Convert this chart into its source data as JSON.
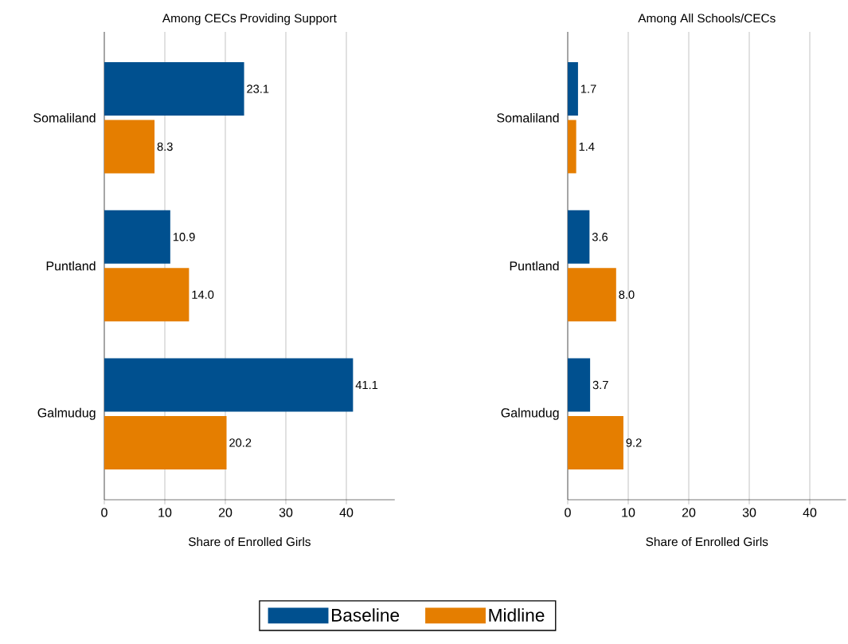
{
  "chart_data": [
    {
      "type": "bar",
      "orientation": "horizontal",
      "title": "Among CECs Providing Support",
      "xlabel": "Share of Enrolled Girls",
      "categories": [
        "Somaliland",
        "Puntland",
        "Galmudug"
      ],
      "series": [
        {
          "name": "Baseline",
          "color": "#00508f",
          "values": [
            23.1,
            10.9,
            41.1
          ],
          "value_labels": [
            "23.1",
            "10.9",
            "41.1"
          ]
        },
        {
          "name": "Midline",
          "color": "#e57e00",
          "values": [
            8.3,
            14.0,
            20.2
          ],
          "value_labels": [
            "8.3",
            "14.0",
            "20.2"
          ]
        }
      ],
      "xlim": [
        0,
        48
      ],
      "xticks": [
        0,
        10,
        20,
        30,
        40
      ],
      "grid": "x",
      "legend": "bottom"
    },
    {
      "type": "bar",
      "orientation": "horizontal",
      "title": "Among All Schools/CECs",
      "xlabel": "Share of Enrolled Girls",
      "categories": [
        "Somaliland",
        "Puntland",
        "Galmudug"
      ],
      "series": [
        {
          "color": "#00508f",
          "values": [
            1.7,
            3.6,
            3.7
          ],
          "value_labels": [
            "1.7",
            "3.6",
            "3.7"
          ]
        },
        {
          "color": "#e57e00",
          "values": [
            1.4,
            8.0,
            9.2
          ],
          "value_labels": [
            "1.4",
            "8.0",
            "9.2"
          ]
        }
      ],
      "xlim": [
        0,
        46
      ],
      "xticks": [
        0,
        10,
        20,
        30,
        40
      ],
      "grid": "x"
    }
  ]
}
